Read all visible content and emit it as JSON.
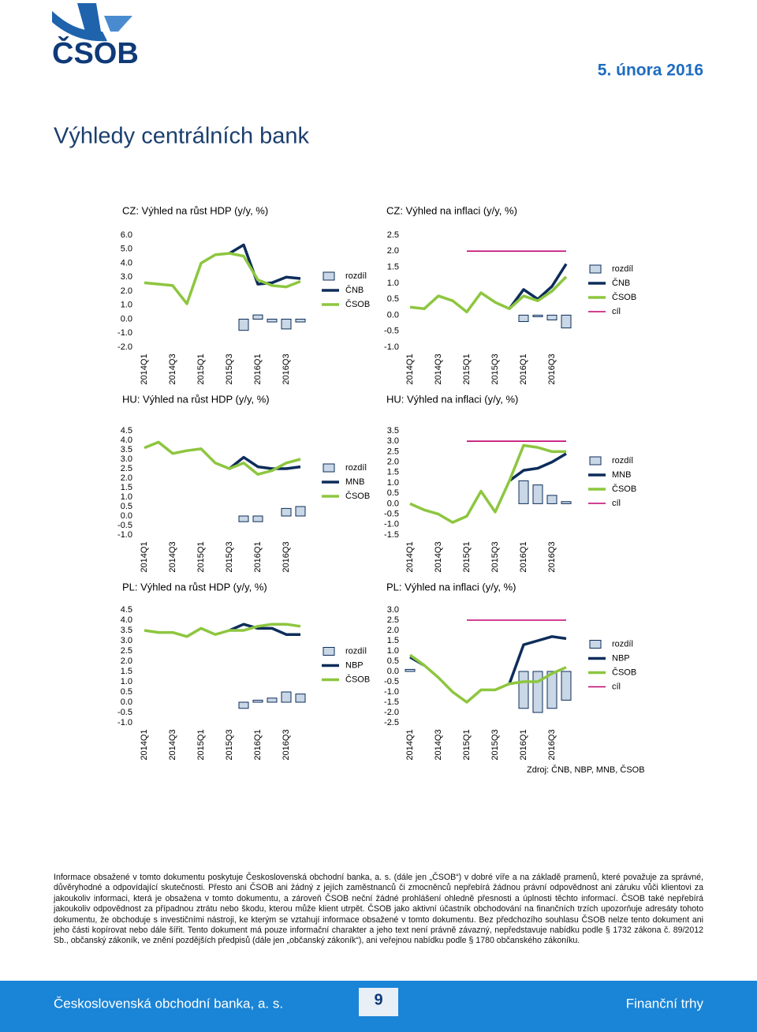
{
  "header": {
    "logo": "ČSOB",
    "date": "5. února 2016",
    "title": "Výhledy centrálních bank"
  },
  "chart_data": [
    {
      "type": "bar-line",
      "title": "CZ: Výhled na růst HDP (y/y, %)",
      "categories": [
        "2014Q1",
        null,
        "2014Q3",
        null,
        "2015Q1",
        null,
        "2015Q3",
        null,
        "2016Q1",
        null,
        "2016Q3",
        null
      ],
      "ylim": [
        -2,
        6
      ],
      "yticks": [
        {
          "value": -2,
          "label": "-2.0"
        },
        {
          "value": -1,
          "label": "-1.0"
        },
        {
          "value": 0,
          "label": "0.0"
        },
        {
          "value": 1,
          "label": "1.0"
        },
        {
          "value": 2,
          "label": "2.0"
        },
        {
          "value": 3,
          "label": "3.0"
        },
        {
          "value": 4,
          "label": "4.0"
        },
        {
          "value": 5,
          "label": "5.0"
        },
        {
          "value": 6,
          "label": "6.0"
        }
      ],
      "series": [
        {
          "name": "rozdíl",
          "type": "bar",
          "color": "#c9d7e6",
          "values": [
            null,
            null,
            null,
            null,
            null,
            null,
            null,
            -0.8,
            0.3,
            -0.2,
            -0.7,
            -0.2
          ]
        },
        {
          "name": "ČNB",
          "type": "line",
          "color": "#0d2d5a",
          "values": [
            null,
            null,
            null,
            null,
            null,
            null,
            4.7,
            5.3,
            2.5,
            2.6,
            3.0,
            2.9
          ]
        },
        {
          "name": "ČSOB",
          "type": "line",
          "color": "#8dc63f",
          "values": [
            2.6,
            2.5,
            2.4,
            1.1,
            4.0,
            4.6,
            4.7,
            4.5,
            2.8,
            2.4,
            2.3,
            2.7
          ]
        }
      ]
    },
    {
      "type": "bar-line",
      "title": "CZ: Výhled na inflaci (y/y, %)",
      "categories": [
        "2014Q1",
        null,
        "2014Q3",
        null,
        "2015Q1",
        null,
        "2015Q3",
        null,
        "2016Q1",
        null,
        "2016Q3",
        null
      ],
      "ylim": [
        -1,
        2.5
      ],
      "yticks": [
        {
          "value": -1,
          "label": "-1.0"
        },
        {
          "value": -0.5,
          "label": "-0.5"
        },
        {
          "value": 0,
          "label": "0.0"
        },
        {
          "value": 0.5,
          "label": "0.5"
        },
        {
          "value": 1,
          "label": "1.0"
        },
        {
          "value": 1.5,
          "label": "1.5"
        },
        {
          "value": 2,
          "label": "2.0"
        },
        {
          "value": 2.5,
          "label": "2.5"
        }
      ],
      "series": [
        {
          "name": "rozdíl",
          "type": "bar",
          "color": "#c9d7e6",
          "values": [
            null,
            null,
            null,
            null,
            null,
            null,
            null,
            null,
            -0.2,
            -0.05,
            -0.15,
            -0.4
          ]
        },
        {
          "name": "ČNB",
          "type": "line",
          "color": "#0d2d5a",
          "values": [
            null,
            null,
            null,
            null,
            null,
            null,
            null,
            0.2,
            0.8,
            0.5,
            0.9,
            1.6
          ]
        },
        {
          "name": "ČSOB",
          "type": "line",
          "color": "#8dc63f",
          "values": [
            0.25,
            0.2,
            0.6,
            0.45,
            0.1,
            0.7,
            0.4,
            0.2,
            0.6,
            0.45,
            0.75,
            1.2
          ]
        },
        {
          "name": "cíl",
          "type": "target",
          "color": "#c0006e",
          "values": [
            null,
            null,
            null,
            null,
            2,
            2,
            2,
            2,
            2,
            2,
            2,
            2
          ]
        }
      ]
    },
    {
      "type": "bar-line",
      "title": "HU: Výhled na růst HDP (y/y, %)",
      "categories": [
        "2014Q1",
        null,
        "2014Q3",
        null,
        "2015Q1",
        null,
        "2015Q3",
        null,
        "2016Q1",
        null,
        "2016Q3",
        null
      ],
      "ylim": [
        -1,
        4.5
      ],
      "yticks": [
        {
          "value": -1,
          "label": "-1.0"
        },
        {
          "value": -0.5,
          "label": "-0.5"
        },
        {
          "value": 0,
          "label": "0.0"
        },
        {
          "value": 0.5,
          "label": "0.5"
        },
        {
          "value": 1,
          "label": "1.0"
        },
        {
          "value": 1.5,
          "label": "1.5"
        },
        {
          "value": 2,
          "label": "2.0"
        },
        {
          "value": 2.5,
          "label": "2.5"
        },
        {
          "value": 3,
          "label": "3.0"
        },
        {
          "value": 3.5,
          "label": "3.5"
        },
        {
          "value": 4,
          "label": "4.0"
        },
        {
          "value": 4.5,
          "label": "4.5"
        }
      ],
      "series": [
        {
          "name": "rozdíl",
          "type": "bar",
          "color": "#c9d7e6",
          "values": [
            null,
            null,
            null,
            null,
            null,
            null,
            null,
            -0.3,
            -0.3,
            null,
            0.4,
            0.5
          ]
        },
        {
          "name": "MNB",
          "type": "line",
          "color": "#0d2d5a",
          "values": [
            null,
            null,
            null,
            null,
            null,
            null,
            2.5,
            3.1,
            2.6,
            2.5,
            2.5,
            2.6
          ]
        },
        {
          "name": "ČSOB",
          "type": "line",
          "color": "#8dc63f",
          "values": [
            3.6,
            3.9,
            3.3,
            3.45,
            3.55,
            2.8,
            2.5,
            2.8,
            2.2,
            2.4,
            2.8,
            3.0
          ]
        }
      ]
    },
    {
      "type": "bar-line",
      "title": "HU: Výhled na inflaci (y/y, %)",
      "categories": [
        "2014Q1",
        null,
        "2014Q3",
        null,
        "2015Q1",
        null,
        "2015Q3",
        null,
        "2016Q1",
        null,
        "2016Q3",
        null
      ],
      "ylim": [
        -1.5,
        3.5
      ],
      "yticks": [
        {
          "value": -1.5,
          "label": "-1.5"
        },
        {
          "value": -1,
          "label": "-1.0"
        },
        {
          "value": -0.5,
          "label": "-0.5"
        },
        {
          "value": 0,
          "label": "0.0"
        },
        {
          "value": 0.5,
          "label": "0.5"
        },
        {
          "value": 1,
          "label": "1.0"
        },
        {
          "value": 1.5,
          "label": "1.5"
        },
        {
          "value": 2,
          "label": "2.0"
        },
        {
          "value": 2.5,
          "label": "2.5"
        },
        {
          "value": 3,
          "label": "3.0"
        },
        {
          "value": 3.5,
          "label": "3.5"
        }
      ],
      "series": [
        {
          "name": "rozdíl",
          "type": "bar",
          "color": "#c9d7e6",
          "values": [
            null,
            null,
            null,
            null,
            null,
            null,
            null,
            null,
            1.1,
            0.9,
            0.4,
            0.1
          ]
        },
        {
          "name": "MNB",
          "type": "line",
          "color": "#0d2d5a",
          "values": [
            null,
            null,
            null,
            null,
            null,
            null,
            null,
            1.1,
            1.6,
            1.7,
            2.0,
            2.4
          ]
        },
        {
          "name": "ČSOB",
          "type": "line",
          "color": "#8dc63f",
          "values": [
            0.0,
            -0.3,
            -0.5,
            -0.9,
            -0.6,
            0.6,
            -0.4,
            1.1,
            2.8,
            2.7,
            2.5,
            2.5
          ]
        },
        {
          "name": "cíl",
          "type": "target",
          "color": "#c0006e",
          "values": [
            null,
            null,
            null,
            null,
            3,
            3,
            3,
            3,
            3,
            3,
            3,
            3
          ]
        }
      ]
    },
    {
      "type": "bar-line",
      "title": "PL: Výhled na růst HDP (y/y, %)",
      "categories": [
        "2014Q1",
        null,
        "2014Q3",
        null,
        "2015Q1",
        null,
        "2015Q3",
        null,
        "2016Q1",
        null,
        "2016Q3",
        null
      ],
      "ylim": [
        -1,
        4.5
      ],
      "yticks": [
        {
          "value": -1,
          "label": "-1.0"
        },
        {
          "value": -0.5,
          "label": "-0.5"
        },
        {
          "value": 0,
          "label": "0.0"
        },
        {
          "value": 0.5,
          "label": "0.5"
        },
        {
          "value": 1,
          "label": "1.0"
        },
        {
          "value": 1.5,
          "label": "1.5"
        },
        {
          "value": 2,
          "label": "2.0"
        },
        {
          "value": 2.5,
          "label": "2.5"
        },
        {
          "value": 3,
          "label": "3.0"
        },
        {
          "value": 3.5,
          "label": "3.5"
        },
        {
          "value": 4,
          "label": "4.0"
        },
        {
          "value": 4.5,
          "label": "4.5"
        }
      ],
      "series": [
        {
          "name": "rozdíl",
          "type": "bar",
          "color": "#c9d7e6",
          "values": [
            null,
            null,
            null,
            null,
            null,
            null,
            null,
            -0.3,
            0.1,
            0.2,
            0.5,
            0.4
          ]
        },
        {
          "name": "NBP",
          "type": "line",
          "color": "#0d2d5a",
          "values": [
            null,
            null,
            null,
            null,
            null,
            null,
            3.5,
            3.8,
            3.6,
            3.6,
            3.3,
            3.3
          ]
        },
        {
          "name": "ČSOB",
          "type": "line",
          "color": "#8dc63f",
          "values": [
            3.5,
            3.4,
            3.4,
            3.2,
            3.6,
            3.3,
            3.5,
            3.5,
            3.7,
            3.8,
            3.8,
            3.7
          ]
        }
      ]
    },
    {
      "type": "bar-line",
      "title": "PL: Výhled na inflaci (y/y, %)",
      "categories": [
        "2014Q1",
        null,
        "2014Q3",
        null,
        "2015Q1",
        null,
        "2015Q3",
        null,
        "2016Q1",
        null,
        "2016Q3",
        null
      ],
      "ylim": [
        -2.5,
        3
      ],
      "yticks": [
        {
          "value": -2.5,
          "label": "-2.5"
        },
        {
          "value": -2,
          "label": "-2.0"
        },
        {
          "value": -1.5,
          "label": "-1.5"
        },
        {
          "value": -1,
          "label": "-1.0"
        },
        {
          "value": -0.5,
          "label": "-0.5"
        },
        {
          "value": 0,
          "label": "0.0"
        },
        {
          "value": 0.5,
          "label": "0.5"
        },
        {
          "value": 1,
          "label": "1.0"
        },
        {
          "value": 1.5,
          "label": "1.5"
        },
        {
          "value": 2,
          "label": "2.0"
        },
        {
          "value": 2.5,
          "label": "2.5"
        },
        {
          "value": 3,
          "label": "3.0"
        }
      ],
      "series": [
        {
          "name": "rozdíl",
          "type": "bar",
          "color": "#c9d7e6",
          "values": [
            0.1,
            null,
            null,
            null,
            null,
            null,
            null,
            null,
            -1.8,
            -2.0,
            -1.8,
            -1.4
          ]
        },
        {
          "name": "NBP",
          "type": "line",
          "color": "#0d2d5a",
          "values": [
            0.7,
            0.3,
            null,
            null,
            null,
            null,
            null,
            -0.6,
            1.3,
            1.5,
            1.7,
            1.6
          ]
        },
        {
          "name": "ČSOB",
          "type": "line",
          "color": "#8dc63f",
          "values": [
            0.8,
            0.3,
            -0.3,
            -1.0,
            -1.5,
            -0.9,
            -0.9,
            -0.6,
            -0.5,
            -0.5,
            -0.1,
            0.2
          ]
        },
        {
          "name": "cíl",
          "type": "target",
          "color": "#c0006e",
          "values": [
            null,
            null,
            null,
            null,
            2.5,
            2.5,
            2.5,
            2.5,
            2.5,
            2.5,
            2.5,
            2.5
          ]
        }
      ]
    }
  ],
  "source": "Zdroj: ČNB, NBP, MNB, ČSOB",
  "disclaimer": "Informace obsažené v tomto dokumentu poskytuje Československá obchodní banka, a. s. (dále jen „ČSOB“) v dobré víře a na základě pramenů, které považuje za správné, důvěryhodné a odpovídající skutečnosti. Přesto ani ČSOB ani žádný z jejích zaměstnanců či zmocněnců nepřebírá žádnou právní odpovědnost ani záruku vůči klientovi za jakoukoliv informaci, která je obsažena v tomto dokumentu, a zároveň ČSOB neční žádné prohlášení ohledně přesnosti a úplnosti těchto informací. ČSOB také nepřebírá jakoukoliv odpovědnost za případnou ztrátu nebo škodu, kterou může klient utrpět. ČSOB jako aktivní účastník obchodování na finančních trzích upozorňuje adresáty tohoto dokumentu, že obchoduje s investičními nástroji, ke kterým se vztahují informace obsažené v tomto dokumentu. Bez předchozího souhlasu ČSOB nelze tento dokument ani jeho části kopírovat nebo dále šířit. Tento dokument má pouze informační charakter a jeho text není právně závazný, nepředstavuje nabídku podle § 1732 zákona č. 89/2012 Sb., občanský zákoník, ve znění pozdějších předpisů (dále jen „občanský zákoník“), ani veřejnou nabídku podle § 1780 občanského zákoníku.",
  "footer": {
    "company": "Československá obchodní banka, a. s.",
    "page": "9",
    "section": "Finanční trhy"
  }
}
